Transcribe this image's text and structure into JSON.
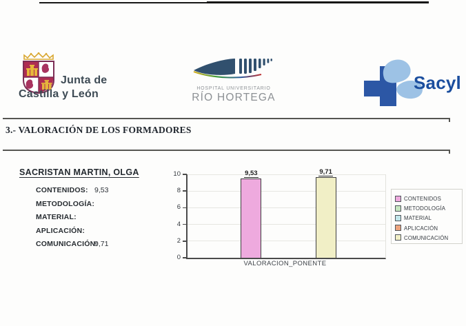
{
  "header": {
    "junta": {
      "line1": "Junta de",
      "line2": "Castilla y León"
    },
    "hospital": {
      "line1": "HOSPITAL UNIVERSITARIO",
      "line2": "RÍO HORTEGA"
    },
    "sacyl": {
      "label": "Sacyl"
    }
  },
  "section": {
    "title": "3.- VALORACIÓN DE LOS FORMADORES"
  },
  "evaluator": {
    "name": "SACRISTAN MARTIN, OLGA",
    "fields": [
      {
        "label": "CONTENIDOS:",
        "value": "9,53"
      },
      {
        "label": "METODOLOGÍA:",
        "value": ""
      },
      {
        "label": "MATERIAL:",
        "value": ""
      },
      {
        "label": "APLICACIÓN:",
        "value": ""
      },
      {
        "label": "COMUNICACIÓN:",
        "value": "9,71"
      }
    ]
  },
  "chart_data": {
    "type": "bar",
    "title": "",
    "xlabel": "VALORACION_PONENTE",
    "ylabel": "",
    "ylim": [
      0,
      10
    ],
    "yticks": [
      0,
      2,
      4,
      6,
      8,
      10
    ],
    "grid": true,
    "legend_position": "right",
    "categories": [
      "VALORACION_PONENTE"
    ],
    "series": [
      {
        "name": "CONTENIDOS",
        "color": "#eeaade",
        "values": [
          9.53
        ],
        "label": "9,53"
      },
      {
        "name": "METODOLOGÍA",
        "color": "#c6e6c0",
        "values": [
          null
        ],
        "label": ""
      },
      {
        "name": "MATERIAL",
        "color": "#c2e6ea",
        "values": [
          null
        ],
        "label": ""
      },
      {
        "name": "APLICACIÓN",
        "color": "#eda47e",
        "values": [
          null
        ],
        "label": ""
      },
      {
        "name": "COMUNICACIÓN",
        "color": "#f1efc6",
        "values": [
          9.71
        ],
        "label": "9,71"
      }
    ]
  }
}
